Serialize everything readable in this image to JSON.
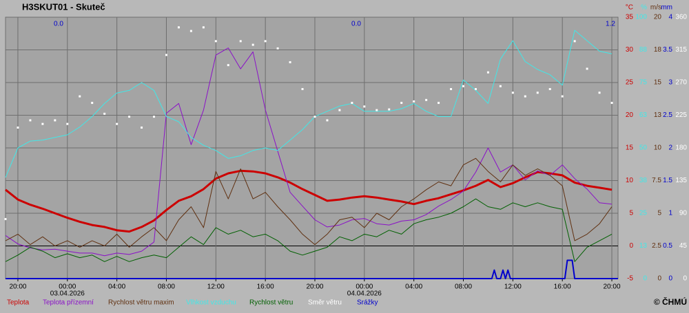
{
  "chart_data": {
    "type": "line",
    "title": "H3SKUT01 - Skuteč",
    "x": [
      -1,
      0,
      1,
      2,
      3,
      4,
      5,
      6,
      7,
      8,
      9,
      10,
      11,
      12,
      13,
      14,
      15,
      16,
      17,
      18,
      19,
      20,
      21,
      22,
      23,
      24,
      25,
      26,
      27,
      28,
      29,
      30,
      31,
      32,
      33,
      34,
      35,
      36,
      37,
      38,
      39,
      40,
      41,
      42,
      43,
      44,
      45,
      46,
      47,
      48
    ],
    "xlim": [
      -1,
      48.5
    ],
    "xticks": [
      {
        "value": 0,
        "label": "20:00"
      },
      {
        "value": 4,
        "label": "00:00"
      },
      {
        "value": 8,
        "label": "04:00"
      },
      {
        "value": 12,
        "label": "08:00"
      },
      {
        "value": 16,
        "label": "12:00"
      },
      {
        "value": 20,
        "label": "16:00"
      },
      {
        "value": 24,
        "label": "20:00"
      },
      {
        "value": 28,
        "label": "00:00"
      },
      {
        "value": 32,
        "label": "04:00"
      },
      {
        "value": 36,
        "label": "08:00"
      },
      {
        "value": 40,
        "label": "12:00"
      },
      {
        "value": 44,
        "label": "16:00"
      },
      {
        "value": 48,
        "label": "20:00"
      }
    ],
    "x_dates": [
      {
        "value": 4,
        "label": "03.04.2026"
      },
      {
        "value": 28,
        "label": "04.04.2026"
      }
    ],
    "annotations": [
      "0.0",
      "0.0",
      "1.2"
    ],
    "units": {
      "y": "°C",
      "y2": "%",
      "y3": "m/s",
      "y4": "mm"
    },
    "axis_colors": {
      "y": "#cc0000",
      "y2": "#40e8e8",
      "y3": "#603010",
      "y4": "#0000cc",
      "y5": "#ffffff"
    },
    "ylim": [
      -5,
      35
    ],
    "yticks": [
      -5,
      0,
      5,
      10,
      15,
      20,
      25,
      30,
      35
    ],
    "y2lim": [
      0,
      100
    ],
    "y2ticks": [
      0,
      {
        "value": 12.5,
        "label": "13"
      },
      25,
      {
        "value": 37.5,
        "label": "38"
      },
      50,
      {
        "value": 62.5,
        "label": "63"
      },
      75,
      {
        "value": 87.5,
        "label": "88"
      },
      100
    ],
    "y3lim": [
      0,
      20
    ],
    "y3ticks": [
      0,
      2.5,
      5,
      7.5,
      10,
      {
        "value": 12.5,
        "label": "13"
      },
      15,
      {
        "value": 17.5,
        "label": "18"
      },
      20
    ],
    "y4lim": [
      0,
      4
    ],
    "y4ticks": [
      0,
      0.5,
      1,
      1.5,
      2,
      2.5,
      3,
      3.5,
      4
    ],
    "y5lim": [
      0,
      360
    ],
    "y5ticks": [
      0,
      45,
      90,
      135,
      180,
      225,
      270,
      315,
      360
    ],
    "grid": true,
    "series": [
      {
        "name": "Teplota",
        "color": "#cc0000",
        "axis": "y",
        "width": 3,
        "values": [
          8.6,
          7.1,
          6.3,
          5.7,
          5.0,
          4.3,
          3.7,
          3.2,
          2.9,
          2.4,
          2.2,
          2.9,
          3.9,
          5.5,
          6.9,
          7.6,
          8.7,
          10.3,
          11.1,
          11.5,
          11.4,
          11.1,
          10.5,
          9.7,
          8.7,
          7.8,
          6.9,
          7.1,
          7.4,
          7.6,
          7.4,
          7.1,
          6.8,
          6.4,
          6.9,
          7.3,
          7.9,
          8.5,
          9.2,
          10.1,
          9.0,
          9.6,
          10.5,
          11.3,
          11.1,
          10.8,
          9.7,
          9.2,
          8.9,
          8.6
        ]
      },
      {
        "name": "Teplota přízemní",
        "color": "#8a10c8",
        "axis": "y",
        "width": 1,
        "values": [
          1.6,
          0.3,
          -0.3,
          -0.6,
          -0.5,
          -0.8,
          -1.1,
          -1.1,
          -1.5,
          -1.1,
          -1.3,
          -0.8,
          0.6,
          20.3,
          21.8,
          15.5,
          20.8,
          29.2,
          30.3,
          27.1,
          29.7,
          20.8,
          14.5,
          8.2,
          6.1,
          4.0,
          2.9,
          3.2,
          4.0,
          4.2,
          3.4,
          3.2,
          3.8,
          4.0,
          4.8,
          6.1,
          7.1,
          8.4,
          11.3,
          15.0,
          11.3,
          12.4,
          10.1,
          11.5,
          10.8,
          12.4,
          10.3,
          8.7,
          6.6,
          6.4
        ]
      },
      {
        "name": "Rychlost větru maxim",
        "color": "#603010",
        "axis": "y3",
        "width": 1,
        "values": [
          2.9,
          3.4,
          2.6,
          3.2,
          2.5,
          2.9,
          2.4,
          2.9,
          2.5,
          3.4,
          2.4,
          3.2,
          3.9,
          2.9,
          4.5,
          5.5,
          3.9,
          8.2,
          6.1,
          8.4,
          6.1,
          6.6,
          5.5,
          4.5,
          3.4,
          2.6,
          3.4,
          4.5,
          4.7,
          3.9,
          5.0,
          4.5,
          5.5,
          6.1,
          6.8,
          7.4,
          7.1,
          8.7,
          9.2,
          8.2,
          7.4,
          8.7,
          7.9,
          8.4,
          7.9,
          7.1,
          2.9,
          3.4,
          4.2,
          5.5
        ]
      },
      {
        "name": "Vlhkost vzduchu",
        "color": "#40e8e8",
        "axis": "y2",
        "width": 1,
        "values": [
          38.7,
          50,
          52.6,
          53,
          54,
          55,
          58,
          62,
          67,
          71,
          72,
          75,
          72,
          62,
          60,
          54,
          51,
          49,
          46,
          47,
          49,
          50,
          49,
          53,
          57,
          62,
          64,
          66,
          67,
          64,
          64,
          64,
          65,
          67,
          64,
          62,
          62,
          76,
          72,
          67,
          84,
          91,
          83,
          80,
          78,
          74,
          95,
          91,
          87,
          86
        ]
      },
      {
        "name": "Rychlost větru",
        "color": "#006000",
        "axis": "y3",
        "width": 1,
        "values": [
          1.3,
          1.8,
          2.4,
          2.1,
          1.6,
          1.9,
          1.6,
          1.8,
          1.3,
          1.7,
          1.3,
          1.6,
          1.8,
          1.6,
          2.4,
          3.2,
          2.6,
          3.9,
          3.4,
          3.7,
          3.2,
          3.4,
          2.9,
          2.1,
          1.8,
          2.1,
          2.4,
          3.2,
          2.9,
          3.4,
          3.2,
          3.7,
          3.4,
          4.2,
          4.5,
          4.7,
          5.0,
          5.5,
          6.1,
          5.5,
          5.3,
          5.8,
          5.5,
          5.8,
          5.5,
          5.3,
          1.3,
          2.4,
          2.9,
          3.4
        ]
      },
      {
        "name": "Směr větru",
        "color": "#ffffff",
        "axis": "y5",
        "dots": true,
        "values": [
          82,
          208,
          218,
          213,
          218,
          213,
          251,
          242,
          227,
          213,
          223,
          208,
          223,
          308,
          346,
          341,
          346,
          327,
          294,
          327,
          322,
          327,
          317,
          298,
          261,
          223,
          218,
          232,
          242,
          237,
          232,
          233,
          242,
          244,
          246,
          242,
          261,
          265,
          261,
          284,
          265,
          256,
          251,
          256,
          261,
          251,
          327,
          289,
          256,
          242
        ]
      },
      {
        "name": "Srážky",
        "color": "#0000cc",
        "axis": "y4",
        "width": 2,
        "x": [
          -1,
          38.3,
          38.5,
          38.7,
          39.0,
          39.2,
          39.4,
          39.6,
          39.8,
          44.2,
          44.4,
          44.8,
          45.0,
          48.5
        ],
        "values": [
          0,
          0,
          0.13,
          0,
          0,
          0.13,
          0,
          0.13,
          0,
          0,
          0.28,
          0.28,
          0,
          0
        ]
      }
    ],
    "copyright": "© ČHMÚ"
  }
}
